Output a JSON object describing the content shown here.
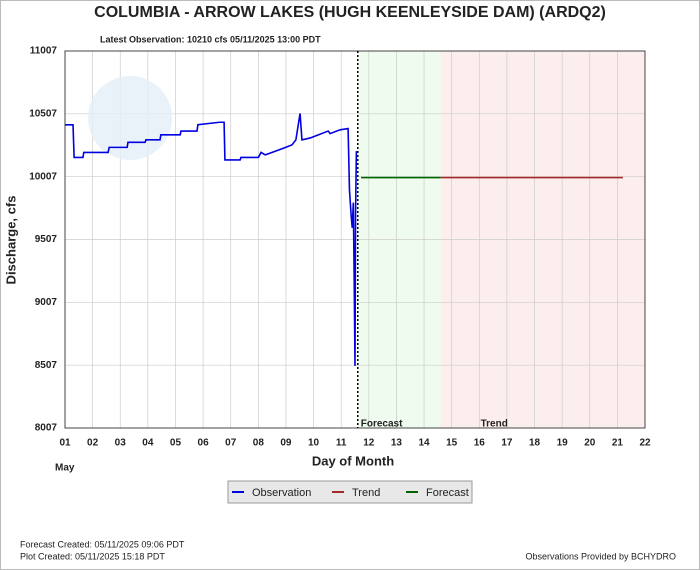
{
  "chart_data": {
    "type": "line",
    "title": "COLUMBIA - ARROW LAKES (HUGH KEENLEYSIDE DAM)  (ARDQ2)",
    "subtitle": "Latest Observation: 10210 cfs 05/11/2025 13:00 PDT",
    "y_label": "Discharge, cfs",
    "x_label": "Day of Month",
    "x_sublabel": "May",
    "xlim": [
      1,
      22
    ],
    "xticks": [
      {
        "value": 1,
        "label": "01"
      },
      {
        "value": 2,
        "label": "02"
      },
      {
        "value": 3,
        "label": "03"
      },
      {
        "value": 4,
        "label": "04"
      },
      {
        "value": 5,
        "label": "05"
      },
      {
        "value": 6,
        "label": "06"
      },
      {
        "value": 7,
        "label": "07"
      },
      {
        "value": 8,
        "label": "08"
      },
      {
        "value": 9,
        "label": "09"
      },
      10,
      11,
      12,
      13,
      14,
      15,
      16,
      17,
      18,
      19,
      20,
      21,
      22
    ],
    "ylim": [
      8007,
      11007
    ],
    "yticks": [
      8007,
      8507,
      9007,
      9507,
      10007,
      10507,
      11007
    ],
    "grid": true,
    "observation_time": 11.6,
    "regions": [
      {
        "label": "Forecast",
        "range": [
          11.6,
          14.6
        ],
        "color": "#eefbee"
      },
      {
        "label": "Trend",
        "range": [
          14.6,
          22
        ],
        "color": "#fdeeee"
      }
    ],
    "series": [
      {
        "name": "Observation",
        "color": "#0000e0",
        "x": [
          1,
          1.29,
          1.33,
          1.65,
          1.68,
          2.56,
          2.6,
          3.25,
          3.28,
          3.9,
          3.93,
          4.44,
          4.47,
          5.17,
          5.2,
          5.78,
          5.81,
          6.6,
          6.76,
          6.79,
          7.34,
          7.37,
          8.0,
          8.1,
          8.25,
          8.5,
          8.93,
          9.22,
          9.36,
          9.51,
          9.58,
          9.88,
          10.53,
          10.6,
          10.96,
          11.25,
          11.3,
          11.36,
          11.4,
          11.44,
          11.47,
          11.5,
          11.52,
          11.55
        ],
        "values": [
          10420,
          10420,
          10160,
          10160,
          10200,
          10200,
          10240,
          10240,
          10280,
          10280,
          10300,
          10300,
          10340,
          10340,
          10370,
          10370,
          10420,
          10440,
          10440,
          10140,
          10140,
          10160,
          10160,
          10200,
          10180,
          10200,
          10235,
          10260,
          10300,
          10510,
          10300,
          10315,
          10370,
          10350,
          10380,
          10390,
          9900,
          9700,
          9600,
          9800,
          9200,
          8500,
          9700,
          10210
        ]
      },
      {
        "name": "Trend",
        "color": "#a52a2a",
        "x": [
          14.6,
          21.2
        ],
        "values": [
          10000,
          10000
        ]
      },
      {
        "name": "Forecast",
        "color": "#006400",
        "x": [
          11.72,
          14.6
        ],
        "values": [
          10000,
          10000
        ]
      }
    ],
    "footer_left": [
      "Forecast Created: 05/11/2025 09:06 PDT",
      "Plot Created: 05/11/2025 15:18 PDT"
    ],
    "footer_right": "Observations Provided by BCHYDRO"
  }
}
